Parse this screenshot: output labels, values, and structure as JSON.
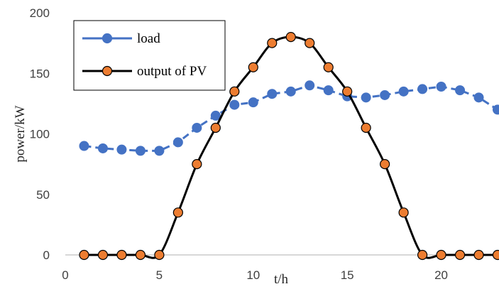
{
  "chart_data": {
    "type": "line",
    "title": "",
    "xlabel": "t/h",
    "ylabel": "power/kW",
    "xlim": [
      0,
      23
    ],
    "ylim": [
      0,
      200
    ],
    "x_ticks": [
      0,
      5,
      10,
      15,
      20
    ],
    "y_ticks": [
      0,
      50,
      100,
      150,
      200
    ],
    "grid": false,
    "legend_position": "top-left",
    "x": [
      1,
      2,
      3,
      4,
      5,
      6,
      7,
      8,
      9,
      10,
      11,
      12,
      13,
      14,
      15,
      16,
      17,
      18,
      19,
      20,
      21,
      22,
      23
    ],
    "series": [
      {
        "name": "load",
        "line_color": "#4472c4",
        "marker_color": "#4472c4",
        "marker_edge": "#4472c4",
        "line_style": "dashed",
        "values": [
          90,
          88,
          87,
          86,
          86,
          93,
          105,
          115,
          124,
          126,
          133,
          135,
          140,
          136,
          131,
          130,
          132,
          135,
          137,
          139,
          136,
          130,
          120
        ]
      },
      {
        "name": "output of PV",
        "line_color": "#000000",
        "marker_color": "#ed7d31",
        "marker_edge": "#000000",
        "line_style": "solid",
        "values": [
          0,
          0,
          0,
          0,
          0,
          35,
          75,
          105,
          135,
          155,
          175,
          180,
          175,
          155,
          135,
          105,
          75,
          35,
          0,
          0,
          0,
          0,
          0
        ]
      }
    ]
  }
}
